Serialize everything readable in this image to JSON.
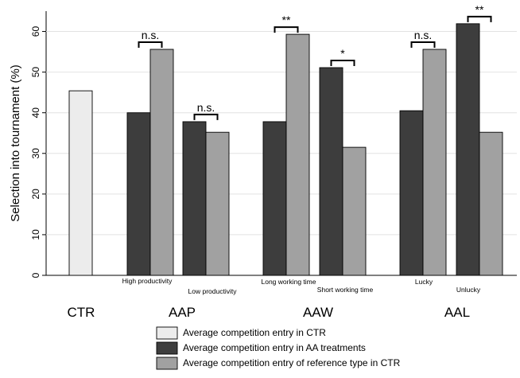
{
  "chart_data": {
    "type": "bar",
    "title": "",
    "xlabel": "",
    "ylabel": "Selection into tournament (%)",
    "ylim": [
      0,
      65
    ],
    "yticks": [
      0,
      10,
      20,
      30,
      40,
      50,
      60
    ],
    "grid": true,
    "colors": {
      "ctr": "#ececec",
      "aa": "#3d3d3d",
      "ref": "#a1a1a1"
    },
    "ctr": {
      "label": "CTR",
      "value": 45.4
    },
    "groups": [
      {
        "label": "AAP",
        "subgroups": [
          {
            "label": "High productivity",
            "aa": 40.0,
            "ref": 55.6,
            "sig": "n.s."
          },
          {
            "label": "Low productivity",
            "aa": 37.8,
            "ref": 35.2,
            "sig": "n.s."
          }
        ]
      },
      {
        "label": "AAW",
        "subgroups": [
          {
            "label": "Long working time",
            "aa": 37.8,
            "ref": 59.3,
            "sig": "**"
          },
          {
            "label": "Short working time",
            "aa": 51.1,
            "ref": 31.5,
            "sig": "*"
          }
        ]
      },
      {
        "label": "AAL",
        "subgroups": [
          {
            "label": "Lucky",
            "aa": 40.5,
            "ref": 55.6,
            "sig": "n.s."
          },
          {
            "label": "Unlucky",
            "aa": 61.9,
            "ref": 35.2,
            "sig": "**"
          }
        ]
      }
    ],
    "legend": {
      "placement": "bottom",
      "entries": [
        "Average competition entry in CTR",
        "Average competition entry in AA treatments",
        "Average competition entry of reference type in CTR"
      ]
    }
  }
}
